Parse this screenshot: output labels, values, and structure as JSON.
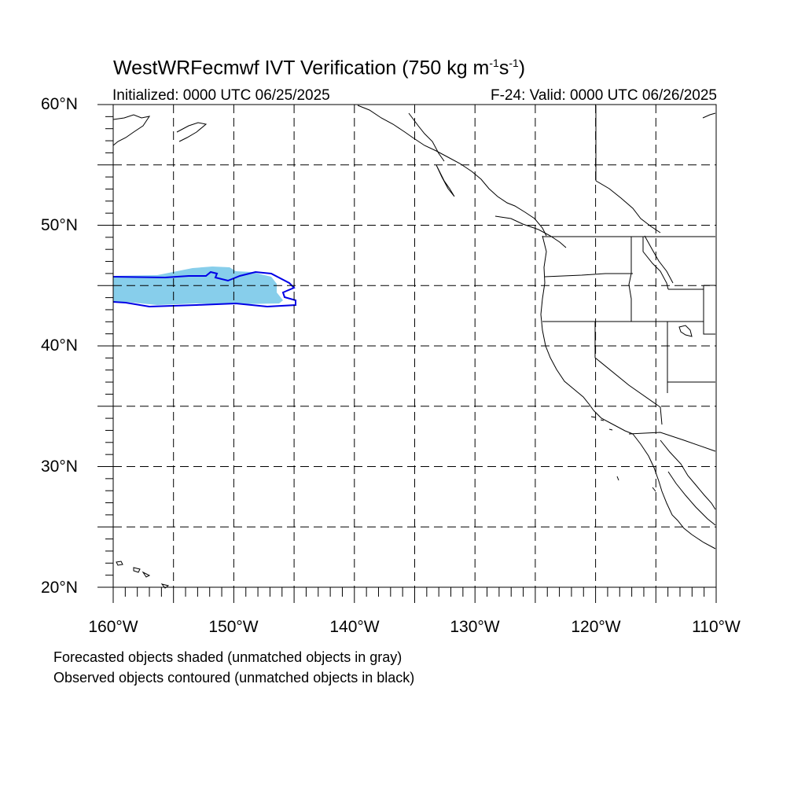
{
  "title": "WestWRFecmwf IVT Verification (750 kg m",
  "title_exp1": "-1",
  "title_mid": "s",
  "title_exp2": "-1",
  "title_end": ")",
  "init_label": "Initialized: 0000 UTC 06/25/2025",
  "valid_label": "F-24: Valid: 0000 UTC 06/26/2025",
  "lat_labels": [
    "60°N",
    "50°N",
    "40°N",
    "30°N",
    "20°N"
  ],
  "lon_labels": [
    "160°W",
    "150°W",
    "140°W",
    "130°W",
    "120°W",
    "110°W"
  ],
  "notes": [
    "Forecasted objects shaded (unmatched objects in gray)",
    "Observed objects contoured (unmatched objects in black)"
  ],
  "map_extent": {
    "lon": [
      -160,
      -110
    ],
    "lat": [
      20,
      60
    ]
  },
  "colors": {
    "forecast_fill": "#87ceeb",
    "observed_contour": "#0000e6",
    "grid": "#000000",
    "coast": "#000000"
  }
}
